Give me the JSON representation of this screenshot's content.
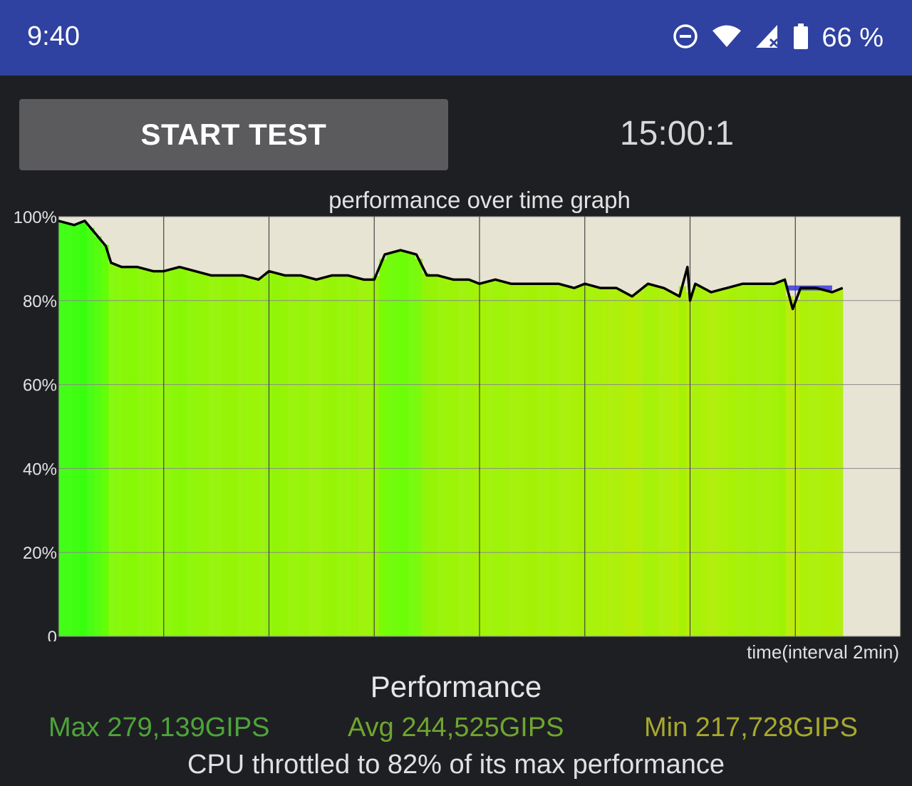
{
  "status_bar": {
    "time": "9:40",
    "battery": "66 %",
    "icons": [
      "do-not-disturb-icon",
      "wifi-icon",
      "cellular-signal-icon",
      "battery-icon"
    ]
  },
  "controls": {
    "start_button": "START TEST",
    "timer": "15:00:1"
  },
  "chart_data": {
    "type": "line",
    "title": "performance over time graph",
    "xlabel": "time(interval 2min)",
    "ylabel": "",
    "y_tick_labels": [
      "100%",
      "80%",
      "60%",
      "40%",
      "20%",
      "0"
    ],
    "ylim": [
      0,
      100
    ],
    "xlim": [
      0,
      16
    ],
    "grid": true,
    "x_unit": "min",
    "series": [
      {
        "values_x": [
          0,
          0.3,
          0.5,
          0.7,
          0.9,
          1.0,
          1.2,
          1.5,
          1.8,
          2.0,
          2.3,
          2.6,
          2.9,
          3.2,
          3.5,
          3.8,
          4.0,
          4.3,
          4.6,
          4.9,
          5.2,
          5.5,
          5.8,
          6.0,
          6.2,
          6.5,
          6.8,
          7.0,
          7.2,
          7.5,
          7.8,
          8.0,
          8.3,
          8.6,
          8.9,
          9.2,
          9.5,
          9.8,
          10.0,
          10.3,
          10.6,
          10.9,
          11.2,
          11.5,
          11.8,
          11.95,
          12.0,
          12.1,
          12.4,
          12.7,
          13.0,
          13.3,
          13.6,
          13.8,
          13.95,
          14.1,
          14.4,
          14.7,
          14.9
        ],
        "values_y": [
          99,
          98,
          99,
          96,
          93,
          89,
          88,
          88,
          87,
          87,
          88,
          87,
          86,
          86,
          86,
          85,
          87,
          86,
          86,
          85,
          86,
          86,
          85,
          85,
          91,
          92,
          91,
          86,
          86,
          85,
          85,
          84,
          85,
          84,
          84,
          84,
          84,
          83,
          84,
          83,
          83,
          81,
          84,
          83,
          81,
          88,
          80,
          84,
          82,
          83,
          84,
          84,
          84,
          85,
          78,
          83,
          83,
          82,
          83
        ]
      },
      {
        "values_x": [
          13.85,
          14.7
        ],
        "values_y": [
          83,
          83
        ]
      }
    ],
    "colors": {
      "plot_background": "#e8e4d4",
      "line": "#000000",
      "avg_marker": "#3a3adc",
      "grid": "#555555"
    }
  },
  "performance": {
    "title": "Performance",
    "max": "Max 279,139GIPS",
    "avg": "Avg 244,525GIPS",
    "min": "Min 217,728GIPS",
    "summary": "CPU throttled to 82% of its max performance"
  }
}
